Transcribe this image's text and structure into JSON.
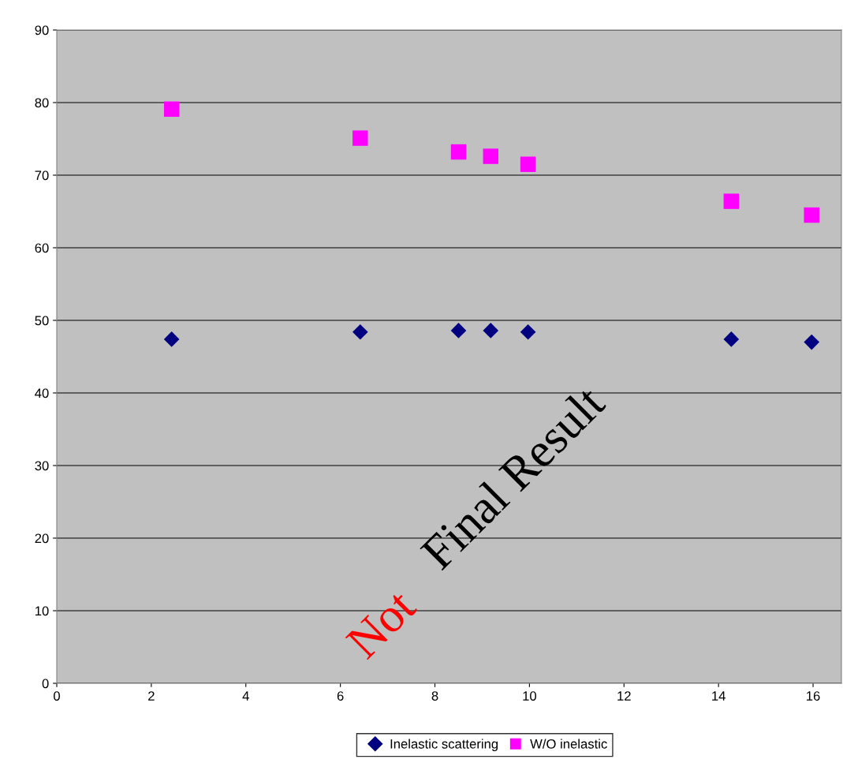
{
  "chart_data": {
    "type": "scatter",
    "series": [
      {
        "name": "Inelastic scattering",
        "color": "#000080",
        "marker": "diamond",
        "x": [
          2.43,
          6.42,
          8.5,
          9.18,
          9.97,
          14.27,
          15.97
        ],
        "values": [
          47.4,
          48.4,
          48.6,
          48.6,
          48.4,
          47.4,
          47.0
        ]
      },
      {
        "name": "W/O inelastic",
        "color": "#ff00ff",
        "marker": "square",
        "x": [
          2.43,
          6.42,
          8.5,
          9.18,
          9.97,
          14.27,
          15.97
        ],
        "values": [
          79.1,
          75.1,
          73.2,
          72.6,
          71.5,
          66.4,
          64.5
        ]
      }
    ],
    "xlim": [
      0,
      16.6
    ],
    "xticks": [
      0,
      2,
      4,
      6,
      8,
      10,
      12,
      14,
      16
    ],
    "ylim": [
      0,
      90
    ],
    "yticks": [
      0,
      10,
      20,
      30,
      40,
      50,
      60,
      70,
      80,
      90
    ],
    "grid": "y",
    "legend": "bottom",
    "annotations": [
      "Not",
      "Final Result"
    ]
  }
}
